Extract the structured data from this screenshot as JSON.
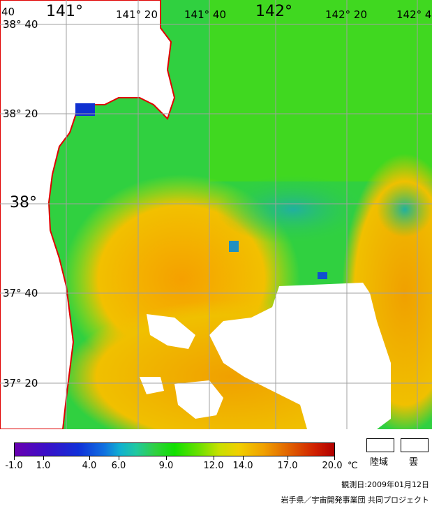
{
  "grid_labels": {
    "lon": [
      "40",
      "141°",
      "141° 20",
      "141° 40",
      "142°",
      "142° 20",
      "142° 4"
    ],
    "lat": [
      "38° 40",
      "38° 20",
      "38°",
      "37° 40",
      "37° 20"
    ]
  },
  "colorbar": {
    "ticks": [
      "-1.0",
      "1.0",
      "4.0",
      "6.0",
      "9.0",
      "12.0",
      "14.0",
      "17.0",
      "20.0"
    ],
    "unit": "℃"
  },
  "legend": {
    "land": "陸域",
    "cloud": "雲"
  },
  "observation_date": "観測日:2009年01月12日",
  "credit": "岩手県／宇宙開発事業団 共同プロジェクト",
  "colors": {
    "land": "#ffffff",
    "coast": "#e00000",
    "grid": "#a0a0a0",
    "sea_cold": "#20c8a0",
    "sea_mid": "#30d040",
    "sea_warm": "#f0b000"
  }
}
